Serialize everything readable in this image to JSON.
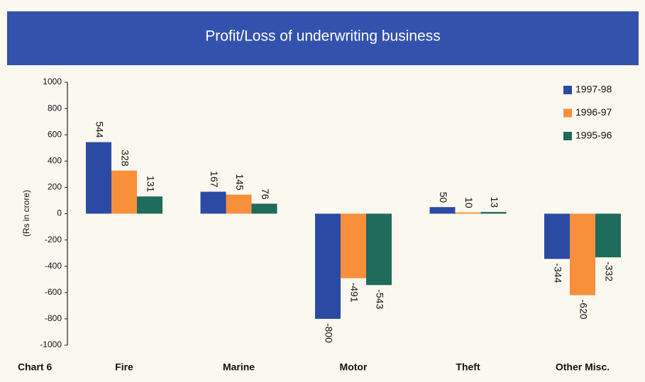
{
  "chart_data": {
    "type": "bar",
    "title": "Profit/Loss of underwriting business",
    "y_label": "(Rs in crore)",
    "annotation": "Chart 6",
    "categories": [
      "Fire",
      "Marine",
      "Motor",
      "Theft",
      "Other Misc."
    ],
    "series": [
      {
        "name": "1997-98",
        "color": "#2b4aa3",
        "values": [
          544,
          167,
          -800,
          50,
          -344
        ]
      },
      {
        "name": "1996-97",
        "color": "#f78f3b",
        "values": [
          328,
          145,
          -491,
          10,
          -620
        ]
      },
      {
        "name": "1995-96",
        "color": "#1f6b5c",
        "values": [
          131,
          76,
          -543,
          13,
          -332
        ]
      }
    ],
    "ylim": [
      -1000,
      1000
    ],
    "yticks": [
      -1000,
      -800,
      -600,
      -400,
      -200,
      0,
      200,
      400,
      600,
      800,
      1000
    ],
    "legend": "upper right"
  }
}
